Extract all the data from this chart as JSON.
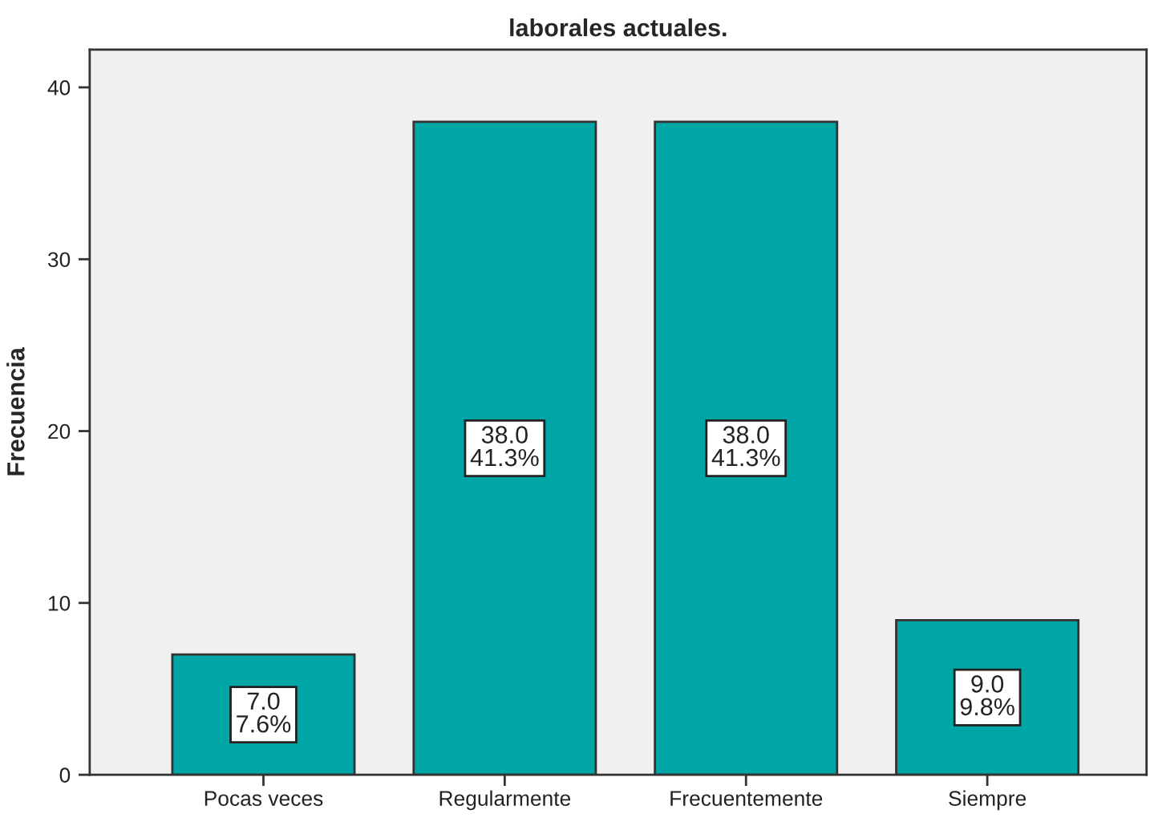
{
  "chart_data": {
    "type": "bar",
    "title": "laborales actuales.",
    "ylabel": "Frecuencia",
    "categories": [
      "Pocas veces",
      "Regularmente",
      "Frecuentemente",
      "Siempre"
    ],
    "values": [
      7,
      38,
      38,
      9
    ],
    "color": "#00a6a6",
    "value_labels": [
      "7.0\n7.6%",
      "38.0\n41.3%",
      "38.0\n41.3%",
      "9.0\n9.8%"
    ],
    "ylim": [
      0,
      42.2
    ],
    "yticks": [
      0,
      10,
      20,
      30,
      40
    ]
  }
}
